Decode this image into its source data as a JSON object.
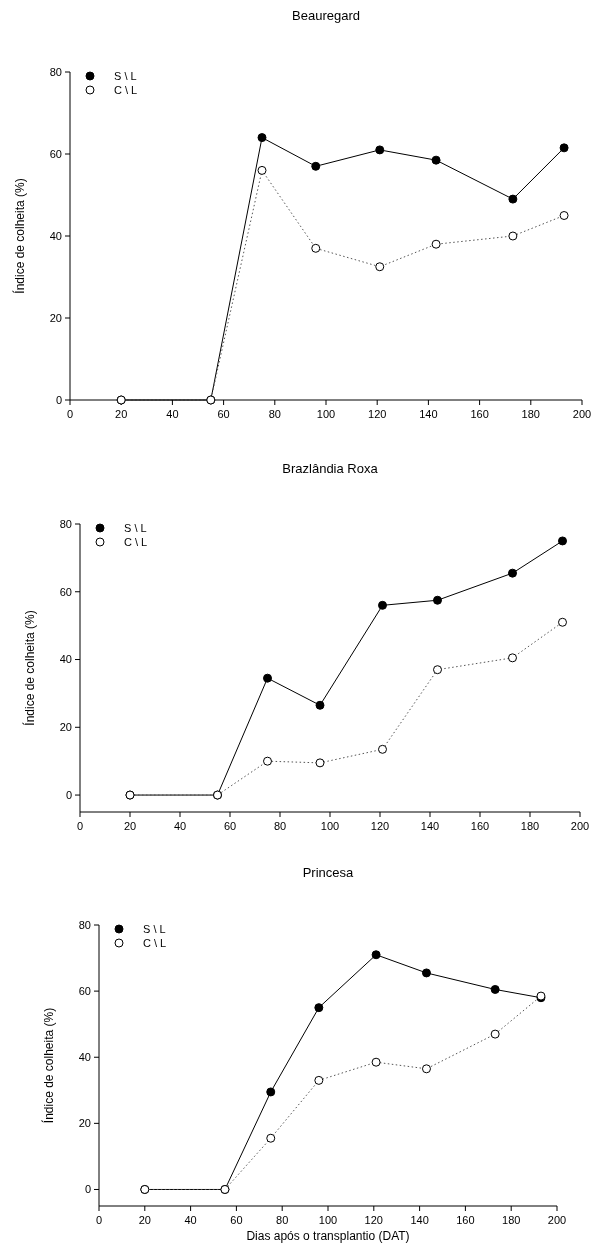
{
  "chart_data": [
    {
      "type": "line",
      "title": "Beauregard",
      "ylabel": "Índice de colheita (%)",
      "x": [
        20,
        55,
        75,
        96,
        121,
        143,
        173,
        193
      ],
      "xlim": [
        0,
        200
      ],
      "xticks": [
        0,
        20,
        40,
        60,
        80,
        100,
        120,
        140,
        160,
        180,
        200
      ],
      "ylim": [
        0,
        80
      ],
      "yticks": [
        0,
        20,
        40,
        60,
        80
      ],
      "legend": "top left",
      "series": [
        {
          "name": "S \\ L",
          "color": "#000000",
          "marker": "circle",
          "line_style": "solid",
          "values": [
            0,
            0,
            64,
            57,
            61,
            58.5,
            49,
            61.5
          ]
        },
        {
          "name": "C \\ L",
          "color": "#000000",
          "marker": "open circle",
          "line_style": "dotted",
          "values": [
            0,
            0,
            56,
            37,
            32.5,
            38,
            40,
            45
          ]
        }
      ]
    },
    {
      "type": "line",
      "title": "Brazlândia Roxa",
      "ylabel": "Índice de colheita (%)",
      "x": [
        20,
        55,
        75,
        96,
        121,
        143,
        173,
        193
      ],
      "xlim": [
        0,
        200
      ],
      "xticks": [
        0,
        20,
        40,
        60,
        80,
        100,
        120,
        140,
        160,
        180,
        200
      ],
      "ylim": [
        -5,
        80
      ],
      "yticks": [
        0,
        20,
        40,
        60,
        80
      ],
      "legend": "top left",
      "series": [
        {
          "name": "S \\ L",
          "color": "#000000",
          "marker": "circle",
          "line_style": "solid",
          "values": [
            0,
            0,
            34.5,
            26.5,
            56,
            57.5,
            65.5,
            75
          ]
        },
        {
          "name": "C \\ L",
          "color": "#000000",
          "marker": "open circle",
          "line_style": "dotted",
          "values": [
            0,
            0,
            10,
            9.5,
            13.5,
            37,
            40.5,
            51
          ]
        }
      ]
    },
    {
      "type": "line",
      "title": "Princesa",
      "xlabel": "Dias após o transplantio (DAT)",
      "ylabel": "Índice de colheita (%)",
      "x": [
        20,
        55,
        75,
        96,
        121,
        143,
        173,
        193
      ],
      "xlim": [
        0,
        200
      ],
      "xticks": [
        0,
        20,
        40,
        60,
        80,
        100,
        120,
        140,
        160,
        180,
        200
      ],
      "ylim": [
        -5,
        80
      ],
      "yticks": [
        0,
        20,
        40,
        60,
        80
      ],
      "legend": "top left",
      "series": [
        {
          "name": "S \\ L",
          "color": "#000000",
          "marker": "circle",
          "line_style": "solid",
          "values": [
            0,
            0,
            29.5,
            55,
            71,
            65.5,
            60.5,
            58
          ]
        },
        {
          "name": "C \\ L",
          "color": "#000000",
          "marker": "open circle",
          "line_style": "dotted",
          "values": [
            0,
            0,
            15.5,
            33,
            38.5,
            36.5,
            47,
            58.5
          ]
        }
      ]
    }
  ]
}
